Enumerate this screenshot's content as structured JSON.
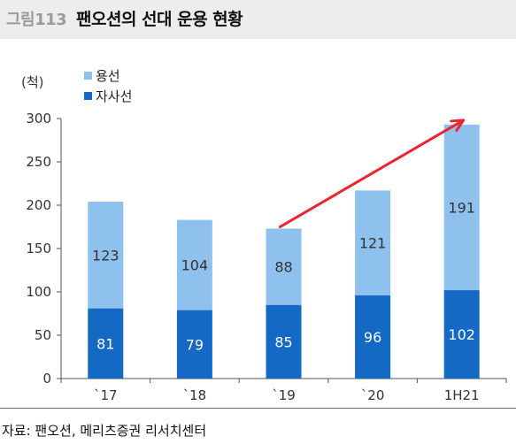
{
  "header": {
    "figure_number": "그림113",
    "title": "팬오션의 선대 운용 현황"
  },
  "source": "자료: 팬오션, 메리츠증권 리서치센터",
  "colors": {
    "light_series": "#8fc1ef",
    "dark_series": "#1369c4",
    "trend_arrow": "#e8262d"
  },
  "chart_data": {
    "type": "bar",
    "stacked": true,
    "categories": [
      "`17",
      "`18",
      "`19",
      "`20",
      "1H21"
    ],
    "series": [
      {
        "name": "자사선",
        "values": [
          81,
          79,
          85,
          96,
          102
        ]
      },
      {
        "name": "용선",
        "values": [
          123,
          104,
          88,
          121,
          191
        ]
      }
    ],
    "ylabel": "(척)",
    "ylim": [
      0,
      300
    ],
    "yticks": [
      0,
      50,
      100,
      150,
      200,
      250,
      300
    ],
    "grid": false,
    "legend_position": "top-left",
    "annotation": "trend arrow from `19 to 1H21"
  }
}
